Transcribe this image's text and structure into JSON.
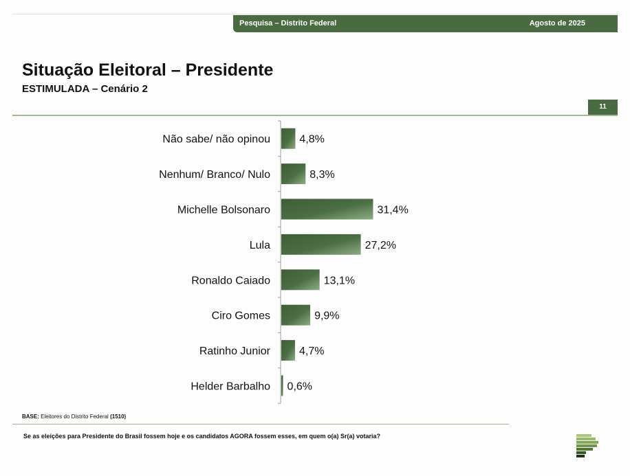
{
  "header": {
    "survey_label": "Pesquisa – Distrito Federal",
    "date_label": "Agosto de 2025",
    "page_number": "11"
  },
  "title": "Situação Eleitoral – Presidente",
  "subtitle": "ESTIMULADA – Cenário 2",
  "footer": {
    "base_prefix": "BASE:",
    "base_text": "Eleitores do Distrito Federal",
    "base_count": "(1510)",
    "question": "Se as eleições para Presidente do Brasil fossem hoje e os candidatos AGORA fossem esses, em quem o(a) Sr(a) votaria?"
  },
  "colors": {
    "brand": "#4a6b41",
    "bar_dark": "#3e5e36",
    "bar_light": "#8fad84",
    "rule": "#9fb58f"
  },
  "chart_data": {
    "type": "bar",
    "orientation": "horizontal",
    "categories": [
      "Não sabe/ não opinou",
      "Nenhum/ Branco/ Nulo",
      "Michelle Bolsonaro",
      "Lula",
      "Ronaldo Caiado",
      "Ciro Gomes",
      "Ratinho Junior",
      "Helder Barbalho"
    ],
    "values": [
      4.8,
      8.3,
      31.4,
      27.2,
      13.1,
      9.9,
      4.7,
      0.6
    ],
    "value_labels": [
      "4,8%",
      "8,3%",
      "31,4%",
      "27,2%",
      "13,1%",
      "9,9%",
      "4,7%",
      "0,6%"
    ],
    "unit": "%",
    "grid": false,
    "legend": "none"
  }
}
